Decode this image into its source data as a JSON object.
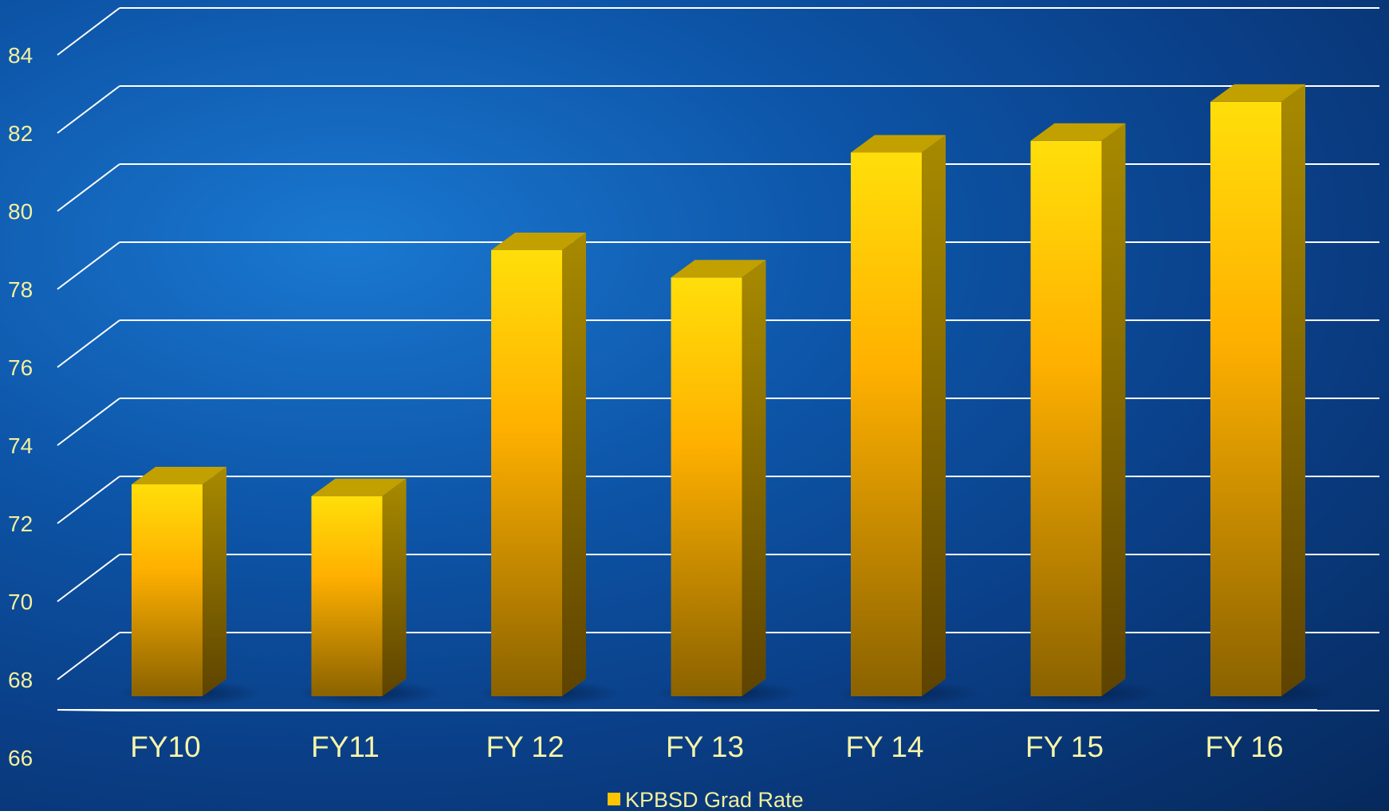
{
  "chart_data": {
    "type": "bar",
    "title": "",
    "xlabel": "",
    "ylabel": "",
    "categories": [
      "FY10",
      "FY11",
      "FY 12",
      "FY 13",
      "FY 14",
      "FY 15",
      "FY 16"
    ],
    "series": [
      {
        "name": "KPBSD Grad Rate",
        "values": [
          73.0,
          72.7,
          79.0,
          78.3,
          81.5,
          81.8,
          82.8
        ]
      }
    ],
    "ylim": [
      66,
      84
    ],
    "yticks": [
      "66",
      "68",
      "70",
      "72",
      "74",
      "76",
      "78",
      "80",
      "82",
      "84"
    ],
    "grid": true,
    "legend_position": "bottom",
    "colors": {
      "bar": "#ffb300",
      "bar_top": "#c8a200",
      "bar_side": "#8c6400",
      "grid": "#ffffff",
      "text": "#f3ef9c"
    }
  }
}
